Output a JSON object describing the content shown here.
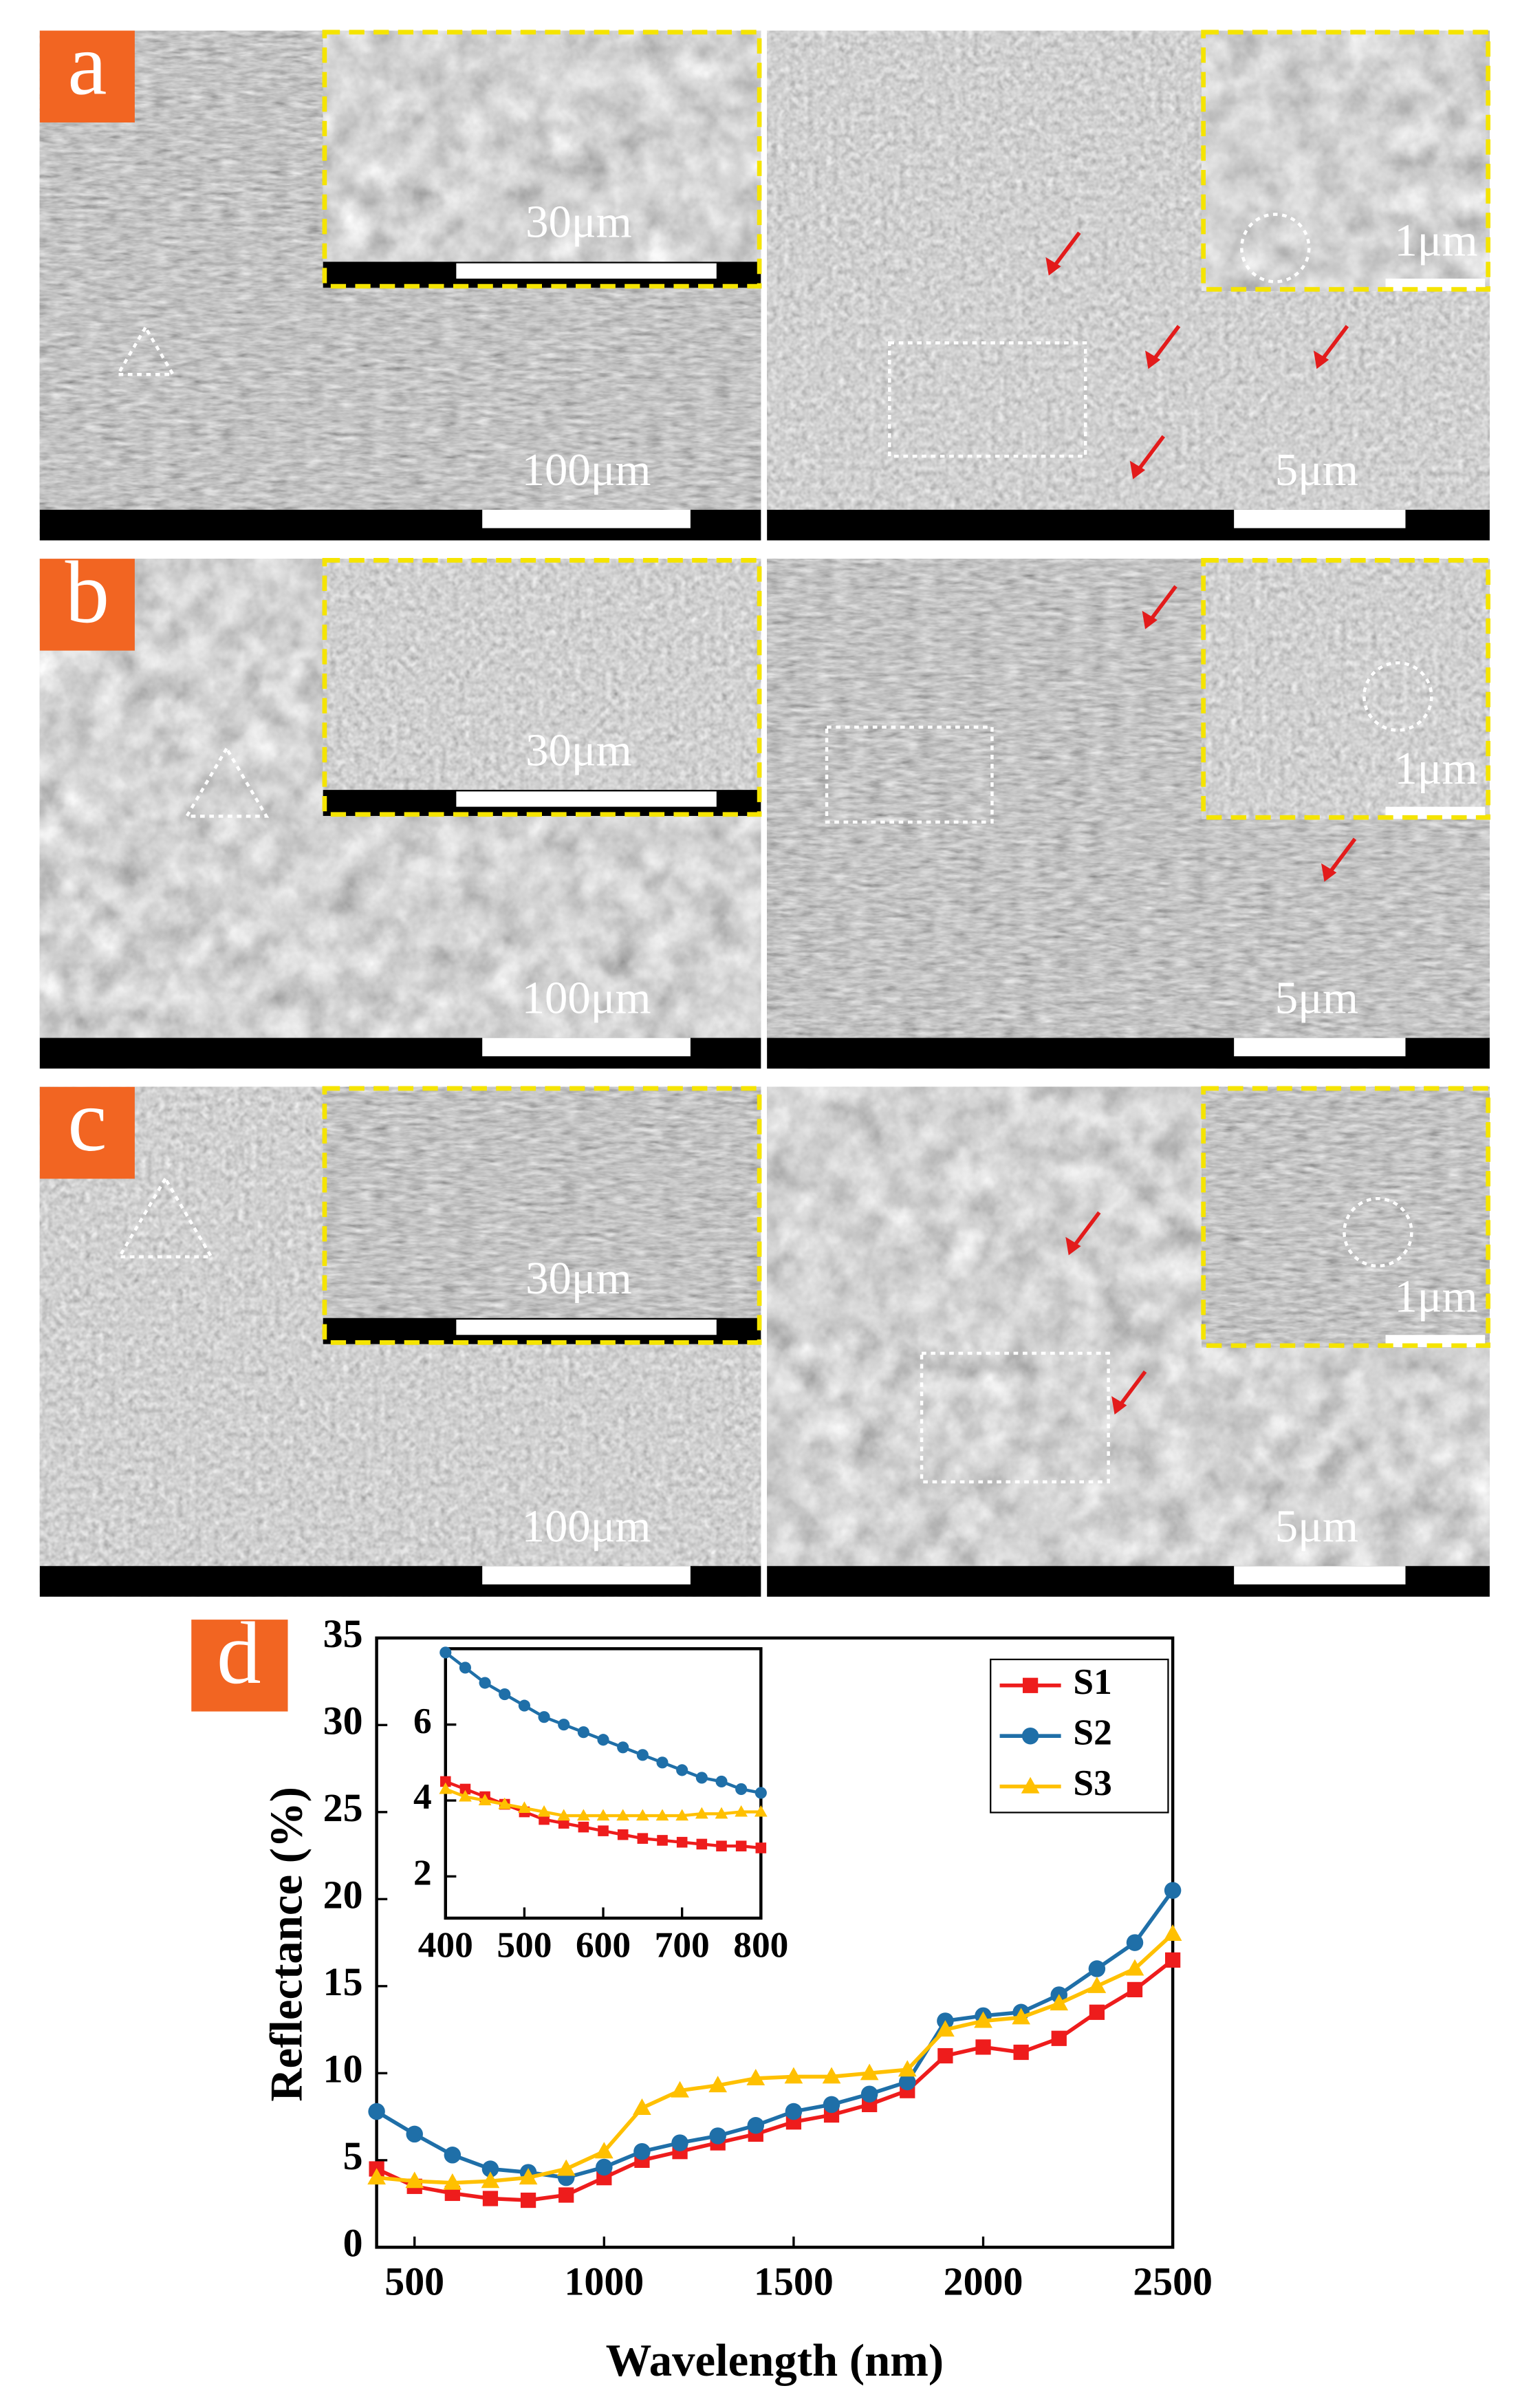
{
  "panels": [
    {
      "label": "a",
      "left_scale": "100μm",
      "inset_scale": "30μm",
      "right_scale": "5μm",
      "right_inset_scale": "1μm"
    },
    {
      "label": "b",
      "left_scale": "100μm",
      "inset_scale": "30μm",
      "right_scale": "5μm",
      "right_inset_scale": "1μm"
    },
    {
      "label": "c",
      "left_scale": "100μm",
      "inset_scale": "30μm",
      "right_scale": "5μm",
      "right_inset_scale": "1μm"
    }
  ],
  "chart_data": [
    {
      "type": "line",
      "label": "d",
      "xlabel": "Wavelength (nm)",
      "ylabel": "Reflectance (%)",
      "x": [
        400,
        500,
        600,
        700,
        800,
        900,
        1000,
        1100,
        1200,
        1300,
        1400,
        1500,
        1600,
        1700,
        1800,
        1900,
        2000,
        2100,
        2200,
        2300,
        2400,
        2500
      ],
      "series": [
        {
          "name": "S1",
          "color": "#ee1c1c",
          "marker": "square",
          "values": [
            4.5,
            3.5,
            3.1,
            2.8,
            2.7,
            3.0,
            4.0,
            5.0,
            5.5,
            6.0,
            6.5,
            7.2,
            7.6,
            8.2,
            9.0,
            11.0,
            11.5,
            11.2,
            12.0,
            13.5,
            14.8,
            16.5
          ]
        },
        {
          "name": "S2",
          "color": "#1f6fa8",
          "marker": "circle",
          "values": [
            7.8,
            6.5,
            5.3,
            4.5,
            4.3,
            4.0,
            4.6,
            5.5,
            6.0,
            6.4,
            7.0,
            7.8,
            8.2,
            8.8,
            9.5,
            13.0,
            13.3,
            13.5,
            14.5,
            16.0,
            17.5,
            20.5
          ]
        },
        {
          "name": "S3",
          "color": "#ffc000",
          "marker": "triangle",
          "values": [
            4.0,
            3.8,
            3.7,
            3.8,
            4.0,
            4.5,
            5.5,
            8.0,
            9.0,
            9.3,
            9.7,
            9.8,
            9.8,
            10.0,
            10.2,
            12.5,
            13.0,
            13.2,
            14.0,
            15.0,
            16.0,
            18.0
          ]
        }
      ],
      "xlim": [
        400,
        2500
      ],
      "ylim": [
        0,
        35
      ],
      "xticks": [
        500,
        1000,
        1500,
        2000,
        2500
      ],
      "yticks": [
        0,
        5,
        10,
        15,
        20,
        25,
        30,
        35
      ],
      "legend": "upper right"
    },
    {
      "type": "line",
      "x": [
        400,
        425,
        450,
        475,
        500,
        525,
        550,
        575,
        600,
        625,
        650,
        675,
        700,
        725,
        750,
        775,
        800
      ],
      "series": [
        {
          "color": "#ee1c1c",
          "marker": "square",
          "values": [
            4.5,
            4.3,
            4.1,
            3.9,
            3.7,
            3.5,
            3.4,
            3.3,
            3.2,
            3.1,
            3.0,
            2.95,
            2.9,
            2.85,
            2.8,
            2.8,
            2.75
          ]
        },
        {
          "color": "#1f6fa8",
          "marker": "circle",
          "values": [
            7.9,
            7.5,
            7.1,
            6.8,
            6.5,
            6.2,
            6.0,
            5.8,
            5.6,
            5.4,
            5.2,
            5.0,
            4.8,
            4.6,
            4.5,
            4.3,
            4.2
          ]
        },
        {
          "color": "#ffc000",
          "marker": "triangle",
          "values": [
            4.3,
            4.1,
            4.0,
            3.9,
            3.8,
            3.7,
            3.6,
            3.6,
            3.6,
            3.6,
            3.6,
            3.6,
            3.6,
            3.65,
            3.65,
            3.7,
            3.7
          ]
        }
      ],
      "xlim": [
        400,
        800
      ],
      "ylim": [
        0.9,
        8
      ],
      "xticks": [
        400,
        500,
        600,
        700,
        800
      ],
      "yticks": [
        2,
        4,
        6
      ]
    }
  ]
}
